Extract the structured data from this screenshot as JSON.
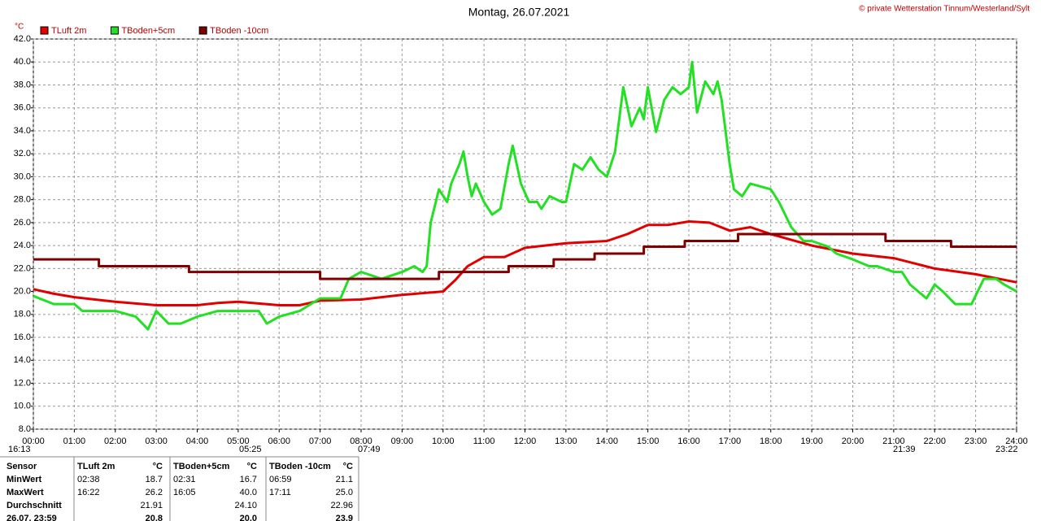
{
  "chart_data": {
    "type": "line",
    "title": "Montag, 26.07.2021",
    "credit": "© private Wetterstation Tinnum/Westerland/Sylt",
    "y_label": "°C",
    "grid": true,
    "legend": "top",
    "xlim": [
      0,
      24
    ],
    "xticks": [
      {
        "value": 0,
        "label": "00:00"
      },
      {
        "value": 1,
        "label": "01:00"
      },
      {
        "value": 2,
        "label": "02:00"
      },
      {
        "value": 3,
        "label": "03:00"
      },
      {
        "value": 4,
        "label": "04:00"
      },
      {
        "value": 5,
        "label": "05:00"
      },
      {
        "value": 6,
        "label": "06:00"
      },
      {
        "value": 7,
        "label": "07:00"
      },
      {
        "value": 8,
        "label": "08:00"
      },
      {
        "value": 9,
        "label": "09:00"
      },
      {
        "value": 10,
        "label": "10:00"
      },
      {
        "value": 11,
        "label": "11:00"
      },
      {
        "value": 12,
        "label": "12:00"
      },
      {
        "value": 13,
        "label": "13:00"
      },
      {
        "value": 14,
        "label": "14:00"
      },
      {
        "value": 15,
        "label": "15:00"
      },
      {
        "value": 16,
        "label": "16:00"
      },
      {
        "value": 17,
        "label": "17:00"
      },
      {
        "value": 18,
        "label": "18:00"
      },
      {
        "value": 19,
        "label": "19:00"
      },
      {
        "value": 20,
        "label": "20:00"
      },
      {
        "value": 21,
        "label": "21:00"
      },
      {
        "value": 22,
        "label": "22:00"
      },
      {
        "value": 23,
        "label": "23:00"
      },
      {
        "value": 24,
        "label": "24:00"
      }
    ],
    "ylim": [
      8,
      42
    ],
    "yticks": [
      {
        "value": 8,
        "label": "8.0"
      },
      {
        "value": 10,
        "label": "10.0"
      },
      {
        "value": 12,
        "label": "12.0"
      },
      {
        "value": 14,
        "label": "14.0"
      },
      {
        "value": 16,
        "label": "16.0"
      },
      {
        "value": 18,
        "label": "18.0"
      },
      {
        "value": 20,
        "label": "20.0"
      },
      {
        "value": 22,
        "label": "22.0"
      },
      {
        "value": 24,
        "label": "24.0"
      },
      {
        "value": 26,
        "label": "26.0"
      },
      {
        "value": 28,
        "label": "28.0"
      },
      {
        "value": 30,
        "label": "30.0"
      },
      {
        "value": 32,
        "label": "32.0"
      },
      {
        "value": 34,
        "label": "34.0"
      },
      {
        "value": 36,
        "label": "36.0"
      },
      {
        "value": 38,
        "label": "38.0"
      },
      {
        "value": 40,
        "label": "40.0"
      },
      {
        "value": 42,
        "label": "42.0"
      }
    ],
    "series": [
      {
        "name": "TLuft 2m",
        "color": "#e00000",
        "x": [
          0,
          0.5,
          1,
          2,
          3,
          4,
          4.5,
          5,
          6,
          6.5,
          7,
          8,
          9,
          10,
          10.3,
          10.6,
          11,
          11.5,
          12,
          13,
          13.5,
          14,
          14.5,
          15,
          15.5,
          16,
          16.5,
          17,
          17.5,
          18,
          18.5,
          19,
          20,
          21,
          22,
          23,
          24
        ],
        "values": [
          20.2,
          19.8,
          19.5,
          19.1,
          18.8,
          18.8,
          19.0,
          19.1,
          18.8,
          18.8,
          19.2,
          19.3,
          19.7,
          20.0,
          21.0,
          22.2,
          23.0,
          23.0,
          23.8,
          24.2,
          24.3,
          24.4,
          25.0,
          25.8,
          25.8,
          26.1,
          26.0,
          25.3,
          25.6,
          25.0,
          24.5,
          24.0,
          23.3,
          22.9,
          22.0,
          21.5,
          20.8
        ]
      },
      {
        "name": "TBoden+5cm",
        "color": "#22e022",
        "x": [
          0,
          0.5,
          1,
          1.2,
          2,
          2.5,
          2.8,
          3,
          3.3,
          3.6,
          4,
          4.5,
          5,
          5.5,
          5.7,
          6,
          6.5,
          7,
          7.5,
          7.7,
          8,
          8.5,
          9,
          9.3,
          9.5,
          9.6,
          9.7,
          9.9,
          10.1,
          10.2,
          10.4,
          10.5,
          10.6,
          10.7,
          10.8,
          11,
          11.2,
          11.4,
          11.6,
          11.7,
          11.9,
          12.1,
          12.3,
          12.4,
          12.6,
          12.9,
          13,
          13.2,
          13.4,
          13.6,
          13.8,
          14,
          14.2,
          14.4,
          14.6,
          14.8,
          14.9,
          15,
          15.2,
          15.4,
          15.6,
          15.8,
          16,
          16.08,
          16.2,
          16.4,
          16.6,
          16.7,
          16.8,
          17,
          17.1,
          17.3,
          17.5,
          18,
          18.2,
          18.5,
          18.8,
          19,
          19.4,
          19.6,
          20,
          20.4,
          20.6,
          21,
          21.2,
          21.4,
          21.6,
          21.8,
          22,
          22.2,
          22.5,
          22.9,
          23.2,
          23.5,
          23.7,
          24
        ],
        "values": [
          19.6,
          18.9,
          18.9,
          18.3,
          18.3,
          17.8,
          16.7,
          18.3,
          17.2,
          17.2,
          17.8,
          18.3,
          18.3,
          18.3,
          17.2,
          17.8,
          18.3,
          19.4,
          19.4,
          21.1,
          21.7,
          21.1,
          21.7,
          22.2,
          21.7,
          22.2,
          26.0,
          28.9,
          27.8,
          29.4,
          31.1,
          32.2,
          30.0,
          28.3,
          29.4,
          27.8,
          26.7,
          27.2,
          31.1,
          32.7,
          29.4,
          27.8,
          27.8,
          27.2,
          28.3,
          27.8,
          27.8,
          31.1,
          30.6,
          31.7,
          30.6,
          30.0,
          32.2,
          37.8,
          34.4,
          36.0,
          35.0,
          37.8,
          33.9,
          36.7,
          37.8,
          37.2,
          37.8,
          40.0,
          35.6,
          38.3,
          37.2,
          38.3,
          36.7,
          31.0,
          28.9,
          28.3,
          29.4,
          28.9,
          27.8,
          25.6,
          24.4,
          24.4,
          23.9,
          23.3,
          22.8,
          22.2,
          22.2,
          21.7,
          21.7,
          20.6,
          20.0,
          19.4,
          20.6,
          20.0,
          18.9,
          18.9,
          21.1,
          21.1,
          20.6,
          20.0
        ]
      },
      {
        "name": "TBoden -10cm",
        "color": "#800000",
        "x": [
          0,
          1.6,
          1.6,
          3.8,
          3.8,
          7,
          7,
          9.9,
          9.9,
          11.6,
          11.6,
          12.7,
          12.7,
          13.7,
          13.7,
          14.9,
          14.9,
          15.9,
          15.9,
          17.2,
          17.2,
          20.8,
          20.8,
          22.4,
          22.4,
          24
        ],
        "values": [
          22.8,
          22.8,
          22.2,
          22.2,
          21.7,
          21.7,
          21.1,
          21.1,
          21.7,
          21.7,
          22.2,
          22.2,
          22.8,
          22.8,
          23.3,
          23.3,
          23.9,
          23.9,
          24.4,
          24.4,
          25.0,
          25.0,
          24.4,
          24.4,
          23.9,
          23.9
        ]
      }
    ],
    "sun_times": [
      "16:13",
      "05:25",
      "07:49",
      "21:39",
      "23:22"
    ]
  },
  "table": {
    "header": [
      "Sensor",
      "TLuft 2m",
      "°C",
      "TBoden+5cm",
      "°C",
      "TBoden -10cm",
      "°C"
    ],
    "rows": [
      [
        "MinWert",
        "02:38",
        "18.7",
        "02:31",
        "16.7",
        "06:59",
        "21.1"
      ],
      [
        "MaxWert",
        "16:22",
        "26.2",
        "16:05",
        "40.0",
        "17:11",
        "25.0"
      ],
      [
        "Durchschnitt",
        null,
        "21.91",
        null,
        "24.10",
        null,
        "22.96"
      ],
      [
        "26.07. 23:59",
        null,
        "20.8",
        null,
        "20.0",
        null,
        "23.9"
      ]
    ]
  }
}
